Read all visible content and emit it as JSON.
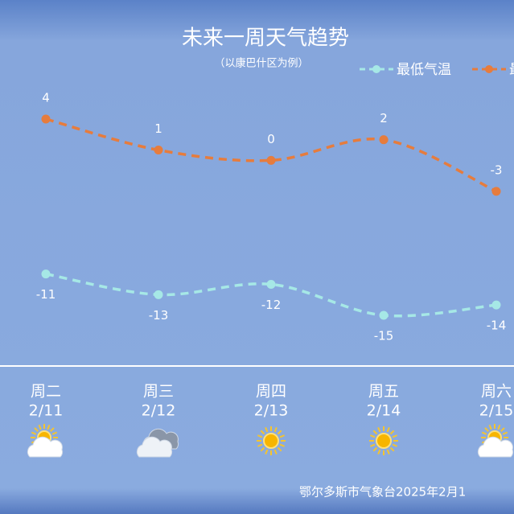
{
  "chart_data": {
    "type": "line",
    "title": "未来一周天气趋势",
    "subtitle": "（以康巴什区为例）",
    "categories": [
      "周二",
      "周三",
      "周四",
      "周五",
      "周六"
    ],
    "dates": [
      "2/11",
      "2/12",
      "2/13",
      "2/14",
      "2/15"
    ],
    "series": [
      {
        "name": "最低气温",
        "color": "#a6e8e6",
        "values": [
          -11,
          -13,
          -12,
          -15,
          -14
        ]
      },
      {
        "name": "最",
        "color": "#e67c3d",
        "values": [
          4,
          1,
          0,
          2,
          -3
        ]
      }
    ],
    "icons": [
      "partly-cloudy",
      "cloudy",
      "sunny",
      "sunny",
      "partly-cloudy"
    ],
    "footer": "鄂尔多斯市气象台2025年2月1"
  }
}
